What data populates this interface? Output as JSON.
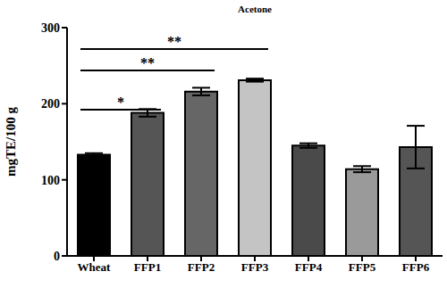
{
  "chart_data": {
    "type": "bar",
    "title": "Acetone",
    "y_label": "mgTE/100 g",
    "categories": [
      "Wheat",
      "FFP1",
      "FFP2",
      "FFP3",
      "FFP4",
      "FFP5",
      "FFP6"
    ],
    "values": [
      133,
      188,
      216,
      231,
      145,
      114,
      143
    ],
    "errors": [
      2,
      5,
      5,
      2,
      3,
      4,
      28
    ],
    "colors": [
      "#000000",
      "#555555",
      "#666666",
      "#c4c4c4",
      "#4a4a4a",
      "#9a9a9a",
      "#555555"
    ],
    "ylim": [
      0,
      300
    ],
    "yticks": [
      0,
      100,
      200,
      300
    ],
    "grid": false,
    "annotations": [
      {
        "from": "Wheat",
        "to": "FFP1",
        "label": "*"
      },
      {
        "from": "Wheat",
        "to": "FFP2",
        "label": "**"
      },
      {
        "from": "Wheat",
        "to": "FFP3",
        "label": "**"
      }
    ]
  }
}
